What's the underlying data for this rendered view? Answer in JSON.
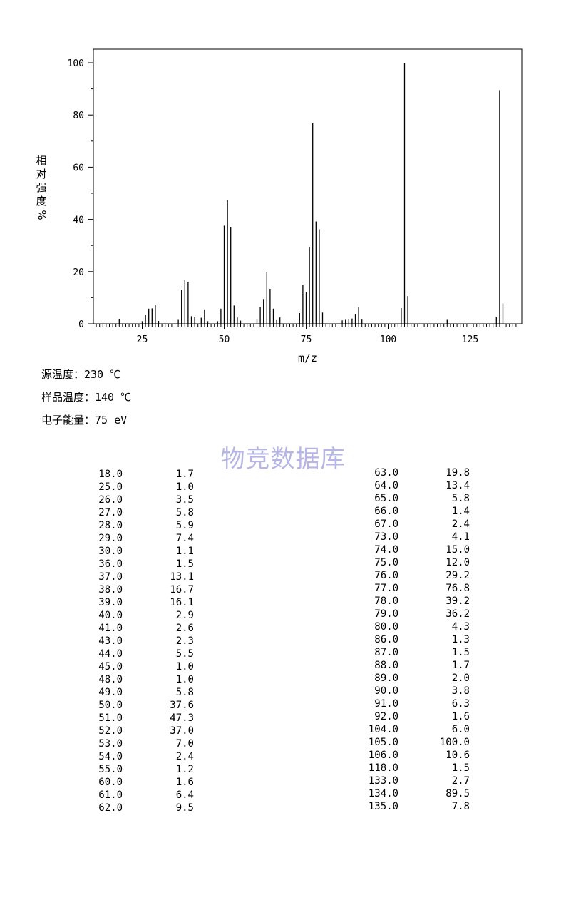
{
  "chart_data": {
    "type": "bar",
    "xlabel": "m/z",
    "ylabel_chars": [
      "相",
      "对",
      "强",
      "度"
    ],
    "ylabel_unit": "%",
    "xlim": [
      10,
      139
    ],
    "ylim": [
      0,
      105
    ],
    "xticks": [
      25,
      50,
      75,
      100,
      125
    ],
    "yticks": [
      0,
      20,
      40,
      60,
      80,
      100
    ],
    "grid": false,
    "peaks": [
      {
        "mz": "18.0",
        "ab": "1.7"
      },
      {
        "mz": "25.0",
        "ab": "1.0"
      },
      {
        "mz": "26.0",
        "ab": "3.5"
      },
      {
        "mz": "27.0",
        "ab": "5.8"
      },
      {
        "mz": "28.0",
        "ab": "5.9"
      },
      {
        "mz": "29.0",
        "ab": "7.4"
      },
      {
        "mz": "30.0",
        "ab": "1.1"
      },
      {
        "mz": "36.0",
        "ab": "1.5"
      },
      {
        "mz": "37.0",
        "ab": "13.1"
      },
      {
        "mz": "38.0",
        "ab": "16.7"
      },
      {
        "mz": "39.0",
        "ab": "16.1"
      },
      {
        "mz": "40.0",
        "ab": "2.9"
      },
      {
        "mz": "41.0",
        "ab": "2.6"
      },
      {
        "mz": "43.0",
        "ab": "2.3"
      },
      {
        "mz": "44.0",
        "ab": "5.5"
      },
      {
        "mz": "45.0",
        "ab": "1.0"
      },
      {
        "mz": "48.0",
        "ab": "1.0"
      },
      {
        "mz": "49.0",
        "ab": "5.8"
      },
      {
        "mz": "50.0",
        "ab": "37.6"
      },
      {
        "mz": "51.0",
        "ab": "47.3"
      },
      {
        "mz": "52.0",
        "ab": "37.0"
      },
      {
        "mz": "53.0",
        "ab": "7.0"
      },
      {
        "mz": "54.0",
        "ab": "2.4"
      },
      {
        "mz": "55.0",
        "ab": "1.2"
      },
      {
        "mz": "60.0",
        "ab": "1.6"
      },
      {
        "mz": "61.0",
        "ab": "6.4"
      },
      {
        "mz": "62.0",
        "ab": "9.5"
      },
      {
        "mz": "63.0",
        "ab": "19.8"
      },
      {
        "mz": "64.0",
        "ab": "13.4"
      },
      {
        "mz": "65.0",
        "ab": "5.8"
      },
      {
        "mz": "66.0",
        "ab": "1.4"
      },
      {
        "mz": "67.0",
        "ab": "2.4"
      },
      {
        "mz": "73.0",
        "ab": "4.1"
      },
      {
        "mz": "74.0",
        "ab": "15.0"
      },
      {
        "mz": "75.0",
        "ab": "12.0"
      },
      {
        "mz": "76.0",
        "ab": "29.2"
      },
      {
        "mz": "77.0",
        "ab": "76.8"
      },
      {
        "mz": "78.0",
        "ab": "39.2"
      },
      {
        "mz": "79.0",
        "ab": "36.2"
      },
      {
        "mz": "80.0",
        "ab": "4.3"
      },
      {
        "mz": "86.0",
        "ab": "1.3"
      },
      {
        "mz": "87.0",
        "ab": "1.5"
      },
      {
        "mz": "88.0",
        "ab": "1.7"
      },
      {
        "mz": "89.0",
        "ab": "2.0"
      },
      {
        "mz": "90.0",
        "ab": "3.8"
      },
      {
        "mz": "91.0",
        "ab": "6.3"
      },
      {
        "mz": "92.0",
        "ab": "1.6"
      },
      {
        "mz": "104.0",
        "ab": "6.0"
      },
      {
        "mz": "105.0",
        "ab": "100.0"
      },
      {
        "mz": "106.0",
        "ab": "10.6"
      },
      {
        "mz": "118.0",
        "ab": "1.5"
      },
      {
        "mz": "133.0",
        "ab": "2.7"
      },
      {
        "mz": "134.0",
        "ab": "89.5"
      },
      {
        "mz": "135.0",
        "ab": "7.8"
      }
    ],
    "bar_color": "#000000"
  },
  "conditions": {
    "source_temp": "源温度：230 ℃",
    "sample_temp": "样品温度：140 ℃",
    "electron_energy": "电子能量：75 eV"
  },
  "watermark": "物竞数据库"
}
